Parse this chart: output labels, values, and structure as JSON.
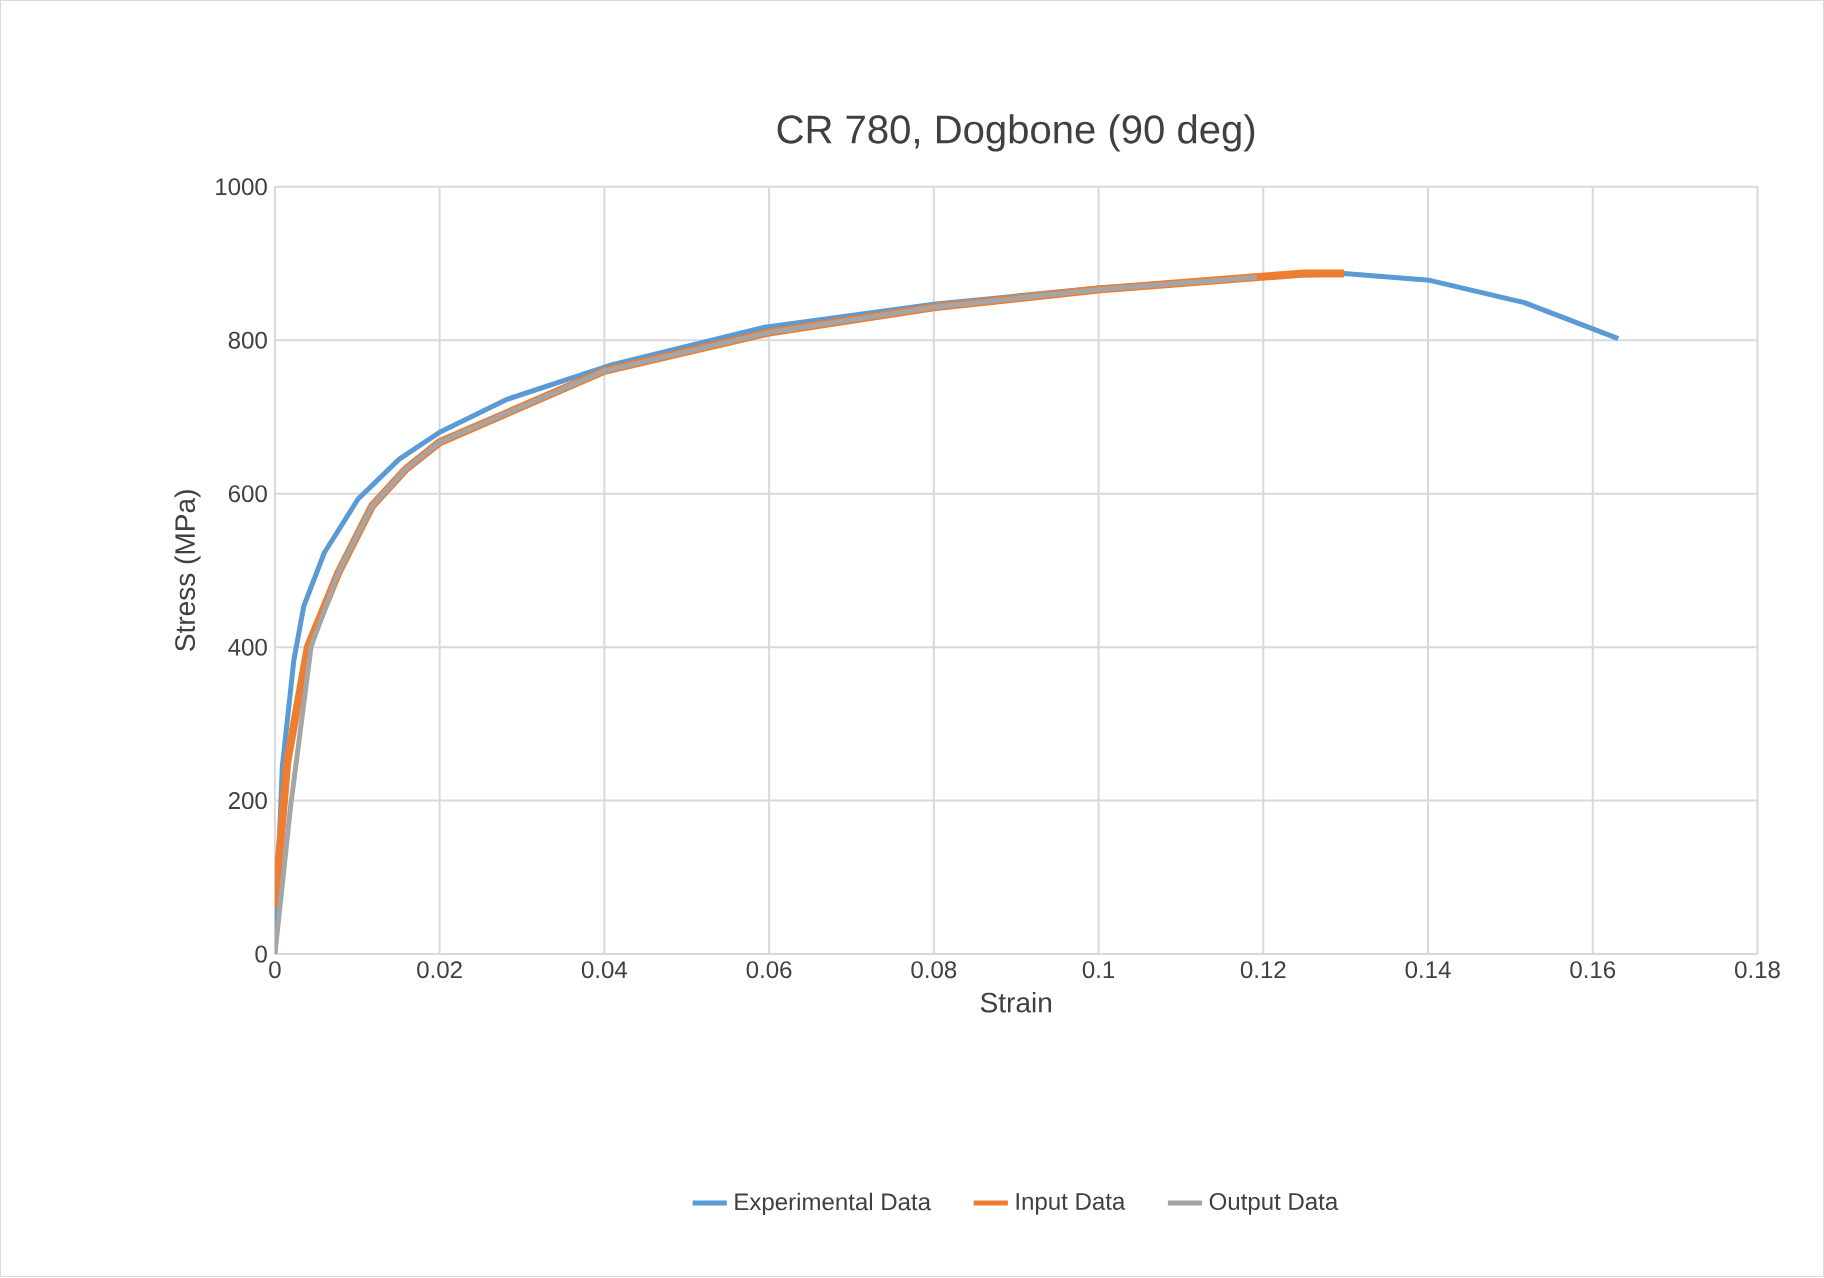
{
  "chart_data": {
    "type": "line",
    "title": "CR 780, Dogbone (90 deg)",
    "xlabel": "Strain",
    "ylabel": "Stress (MPa)",
    "xlim": [
      0,
      0.18
    ],
    "ylim": [
      0,
      1000
    ],
    "xticks": [
      0,
      0.02,
      0.04,
      0.06,
      0.08,
      0.1,
      0.12,
      0.14,
      0.16,
      0.18
    ],
    "yticks": [
      0,
      200,
      400,
      600,
      800,
      1000
    ],
    "grid": true,
    "legend": "bottom",
    "marker": "none",
    "line_style": "solid",
    "series": [
      {
        "name": "Experimental Data",
        "color": "#5b9bd5",
        "x": [
          0,
          0.0009,
          0.0023,
          0.0035,
          0.006,
          0.0101,
          0.0151,
          0.02,
          0.0282,
          0.0406,
          0.0595,
          0.08,
          0.1,
          0.12,
          0.1298,
          0.1402,
          0.1517,
          0.1631
        ],
        "values": [
          0,
          244,
          383,
          453,
          523,
          593,
          645,
          680,
          723,
          767,
          817,
          847,
          868,
          883,
          887,
          878,
          849,
          802
        ]
      },
      {
        "name": "Input Data",
        "color": "#ed7d31",
        "x": [
          0,
          0.0015,
          0.004,
          0.0077,
          0.0118,
          0.0159,
          0.02,
          0.04,
          0.06,
          0.08,
          0.1,
          0.119,
          0.125,
          0.1298
        ],
        "values": [
          60,
          250,
          400,
          497,
          584,
          632,
          667,
          760,
          810,
          843,
          866,
          882,
          887,
          887
        ]
      },
      {
        "name": "Output Data",
        "color": "#a5a5a5",
        "x": [
          0,
          0.0019,
          0.0044,
          0.0077,
          0.0118,
          0.0159,
          0.02,
          0.04,
          0.06,
          0.08,
          0.1,
          0.1192
        ],
        "values": [
          0,
          192,
          401,
          497,
          584,
          632,
          667,
          760,
          810,
          843,
          866,
          882
        ]
      }
    ]
  }
}
